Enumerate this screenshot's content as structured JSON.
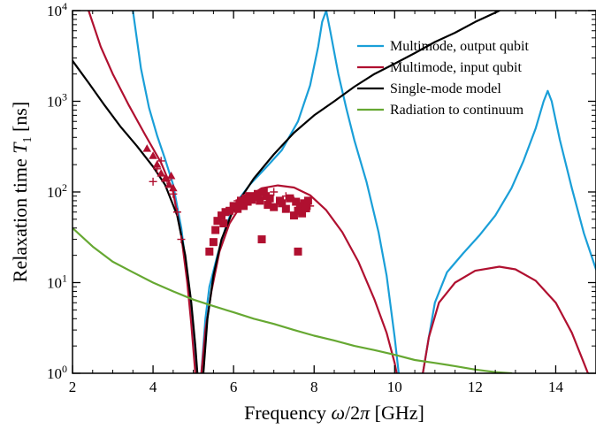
{
  "chart_data": {
    "type": "line",
    "xlabel": "Frequency ω/2π [GHz]",
    "ylabel": "Relaxation time T1 [ns]",
    "xlim": [
      2,
      15
    ],
    "ylim": [
      1,
      10000
    ],
    "yscale": "log",
    "grid": false,
    "legend_position": "top-right",
    "x_ticks": [
      2,
      4,
      6,
      8,
      10,
      12,
      14
    ],
    "y_ticks": [
      {
        "value": 1,
        "label": "10^0"
      },
      {
        "value": 10,
        "label": "10^1"
      },
      {
        "value": 100,
        "label": "10^2"
      },
      {
        "value": 1000,
        "label": "10^3"
      },
      {
        "value": 10000,
        "label": "10^4"
      }
    ],
    "series": [
      {
        "name": "Multimode, output qubit",
        "color": "#1a9fd8",
        "segments": [
          [
            [
              3.5,
              10000
            ],
            [
              3.7,
              2300
            ],
            [
              3.9,
              850
            ],
            [
              4.1,
              420
            ],
            [
              4.3,
              230
            ],
            [
              4.5,
              120
            ],
            [
              4.7,
              40
            ],
            [
              4.85,
              12
            ],
            [
              4.95,
              4
            ],
            [
              5.05,
              1.5
            ],
            [
              5.1,
              1
            ]
          ],
          [
            [
              5.2,
              1
            ],
            [
              5.3,
              4
            ],
            [
              5.4,
              9
            ],
            [
              5.6,
              20
            ],
            [
              5.8,
              40
            ],
            [
              6.0,
              70
            ],
            [
              6.4,
              120
            ],
            [
              6.8,
              185
            ],
            [
              7.2,
              290
            ],
            [
              7.6,
              600
            ],
            [
              7.9,
              1500
            ],
            [
              8.1,
              4000
            ],
            [
              8.2,
              7500
            ],
            [
              8.3,
              10000
            ],
            [
              8.4,
              6000
            ],
            [
              8.6,
              2000
            ],
            [
              8.8,
              830
            ],
            [
              9.0,
              370
            ],
            [
              9.3,
              130
            ],
            [
              9.6,
              36
            ],
            [
              9.8,
              12
            ],
            [
              10.0,
              2.5
            ],
            [
              10.1,
              1
            ]
          ],
          [
            [
              10.7,
              1
            ],
            [
              10.85,
              2.5
            ],
            [
              11.0,
              6
            ],
            [
              11.3,
              13
            ],
            [
              11.7,
              21
            ],
            [
              12.1,
              33
            ],
            [
              12.5,
              55
            ],
            [
              12.9,
              110
            ],
            [
              13.2,
              220
            ],
            [
              13.5,
              500
            ],
            [
              13.7,
              1000
            ],
            [
              13.8,
              1300
            ],
            [
              13.9,
              1000
            ],
            [
              14.1,
              380
            ],
            [
              14.4,
              110
            ],
            [
              14.7,
              35
            ],
            [
              15.0,
              14
            ]
          ]
        ]
      },
      {
        "name": "Multimode, input qubit",
        "color": "#b01030",
        "segments": [
          [
            [
              2.4,
              10000
            ],
            [
              2.7,
              4000
            ],
            [
              3.0,
              2000
            ],
            [
              3.4,
              900
            ],
            [
              3.8,
              430
            ],
            [
              4.2,
              210
            ],
            [
              4.5,
              100
            ],
            [
              4.7,
              33
            ],
            [
              4.85,
              10
            ],
            [
              4.95,
              3.5
            ],
            [
              5.05,
              1
            ]
          ],
          [
            [
              5.2,
              1
            ],
            [
              5.3,
              3
            ],
            [
              5.45,
              8
            ],
            [
              5.65,
              22
            ],
            [
              5.9,
              45
            ],
            [
              6.3,
              85
            ],
            [
              6.7,
              110
            ],
            [
              7.1,
              118
            ],
            [
              7.5,
              112
            ],
            [
              7.9,
              92
            ],
            [
              8.3,
              63
            ],
            [
              8.7,
              36
            ],
            [
              9.1,
              17
            ],
            [
              9.5,
              6.5
            ],
            [
              9.8,
              2.8
            ],
            [
              10.0,
              1.3
            ],
            [
              10.05,
              1
            ]
          ],
          [
            [
              10.7,
              1
            ],
            [
              10.85,
              2.5
            ],
            [
              11.1,
              6
            ],
            [
              11.5,
              10
            ],
            [
              12.0,
              13.5
            ],
            [
              12.6,
              15
            ],
            [
              13.0,
              14
            ],
            [
              13.5,
              10.5
            ],
            [
              14.0,
              6
            ],
            [
              14.4,
              2.8
            ],
            [
              14.7,
              1.3
            ],
            [
              14.8,
              1
            ]
          ]
        ]
      },
      {
        "name": "Single-mode model",
        "color": "#000000",
        "segments": [
          [
            [
              2.0,
              2800
            ],
            [
              2.4,
              1600
            ],
            [
              2.8,
              900
            ],
            [
              3.2,
              520
            ],
            [
              3.6,
              320
            ],
            [
              4.0,
              190
            ],
            [
              4.3,
              120
            ],
            [
              4.6,
              55
            ],
            [
              4.8,
              20
            ],
            [
              4.95,
              6
            ],
            [
              5.05,
              2
            ],
            [
              5.1,
              1
            ]
          ],
          [
            [
              5.25,
              1
            ],
            [
              5.35,
              4
            ],
            [
              5.5,
              12
            ],
            [
              5.7,
              30
            ],
            [
              6.0,
              65
            ],
            [
              6.5,
              140
            ],
            [
              7.0,
              260
            ],
            [
              7.5,
              450
            ],
            [
              8.0,
              700
            ],
            [
              8.5,
              1000
            ],
            [
              9.0,
              1450
            ],
            [
              9.5,
              2000
            ],
            [
              10.0,
              2600
            ],
            [
              10.5,
              3400
            ],
            [
              11.0,
              4500
            ],
            [
              11.5,
              5700
            ],
            [
              12.0,
              7500
            ],
            [
              12.5,
              9500
            ],
            [
              12.6,
              10000
            ]
          ]
        ]
      },
      {
        "name": "Radiation to continuum",
        "color": "#66a832",
        "segments": [
          [
            [
              2.0,
              40
            ],
            [
              2.5,
              25
            ],
            [
              3.0,
              17
            ],
            [
              3.5,
              13
            ],
            [
              4.0,
              10
            ],
            [
              4.5,
              8
            ],
            [
              5.0,
              6.5
            ],
            [
              5.5,
              5.5
            ],
            [
              6.0,
              4.7
            ],
            [
              6.5,
              4.0
            ],
            [
              7.0,
              3.5
            ],
            [
              7.5,
              3.0
            ],
            [
              8.0,
              2.6
            ],
            [
              8.5,
              2.3
            ],
            [
              9.0,
              2.0
            ],
            [
              9.5,
              1.8
            ],
            [
              10.0,
              1.6
            ],
            [
              10.5,
              1.4
            ],
            [
              11.0,
              1.3
            ],
            [
              11.5,
              1.2
            ],
            [
              12.0,
              1.1
            ],
            [
              12.5,
              1.03
            ],
            [
              12.9,
              1.0
            ]
          ]
        ]
      }
    ],
    "scatter": [
      {
        "marker": "triangle",
        "color": "#b01030",
        "points": [
          [
            3.85,
            300
          ],
          [
            4.0,
            250
          ],
          [
            4.1,
            200
          ],
          [
            4.2,
            160
          ],
          [
            4.3,
            140
          ],
          [
            4.4,
            120
          ],
          [
            4.45,
            150
          ],
          [
            4.5,
            110
          ]
        ]
      },
      {
        "marker": "plus",
        "color": "#b01030",
        "points": [
          [
            4.0,
            130
          ],
          [
            4.1,
            180
          ],
          [
            4.2,
            220
          ],
          [
            4.35,
            135
          ],
          [
            4.5,
            95
          ],
          [
            4.6,
            60
          ],
          [
            4.7,
            30
          ],
          [
            6.1,
            80
          ],
          [
            6.3,
            90
          ],
          [
            6.6,
            85
          ],
          [
            7.0,
            100
          ],
          [
            7.3,
            90
          ],
          [
            7.5,
            80
          ],
          [
            7.9,
            70
          ]
        ]
      },
      {
        "marker": "square",
        "color": "#b01030",
        "points": [
          [
            5.4,
            22
          ],
          [
            5.5,
            28
          ],
          [
            5.55,
            38
          ],
          [
            5.6,
            48
          ],
          [
            5.7,
            55
          ],
          [
            5.75,
            45
          ],
          [
            5.8,
            60
          ],
          [
            5.9,
            62
          ],
          [
            6.0,
            70
          ],
          [
            6.1,
            65
          ],
          [
            6.15,
            75
          ],
          [
            6.2,
            80
          ],
          [
            6.25,
            70
          ],
          [
            6.3,
            85
          ],
          [
            6.35,
            78
          ],
          [
            6.4,
            90
          ],
          [
            6.45,
            82
          ],
          [
            6.5,
            88
          ],
          [
            6.6,
            95
          ],
          [
            6.65,
            80
          ],
          [
            6.7,
            30
          ],
          [
            6.75,
            100
          ],
          [
            6.8,
            90
          ],
          [
            6.85,
            72
          ],
          [
            6.9,
            85
          ],
          [
            7.0,
            68
          ],
          [
            7.15,
            80
          ],
          [
            7.2,
            75
          ],
          [
            7.3,
            65
          ],
          [
            7.4,
            85
          ],
          [
            7.5,
            55
          ],
          [
            7.55,
            78
          ],
          [
            7.6,
            62
          ],
          [
            7.6,
            22
          ],
          [
            7.65,
            70
          ],
          [
            7.7,
            58
          ],
          [
            7.75,
            75
          ],
          [
            7.8,
            66
          ],
          [
            7.85,
            80
          ]
        ]
      }
    ]
  }
}
